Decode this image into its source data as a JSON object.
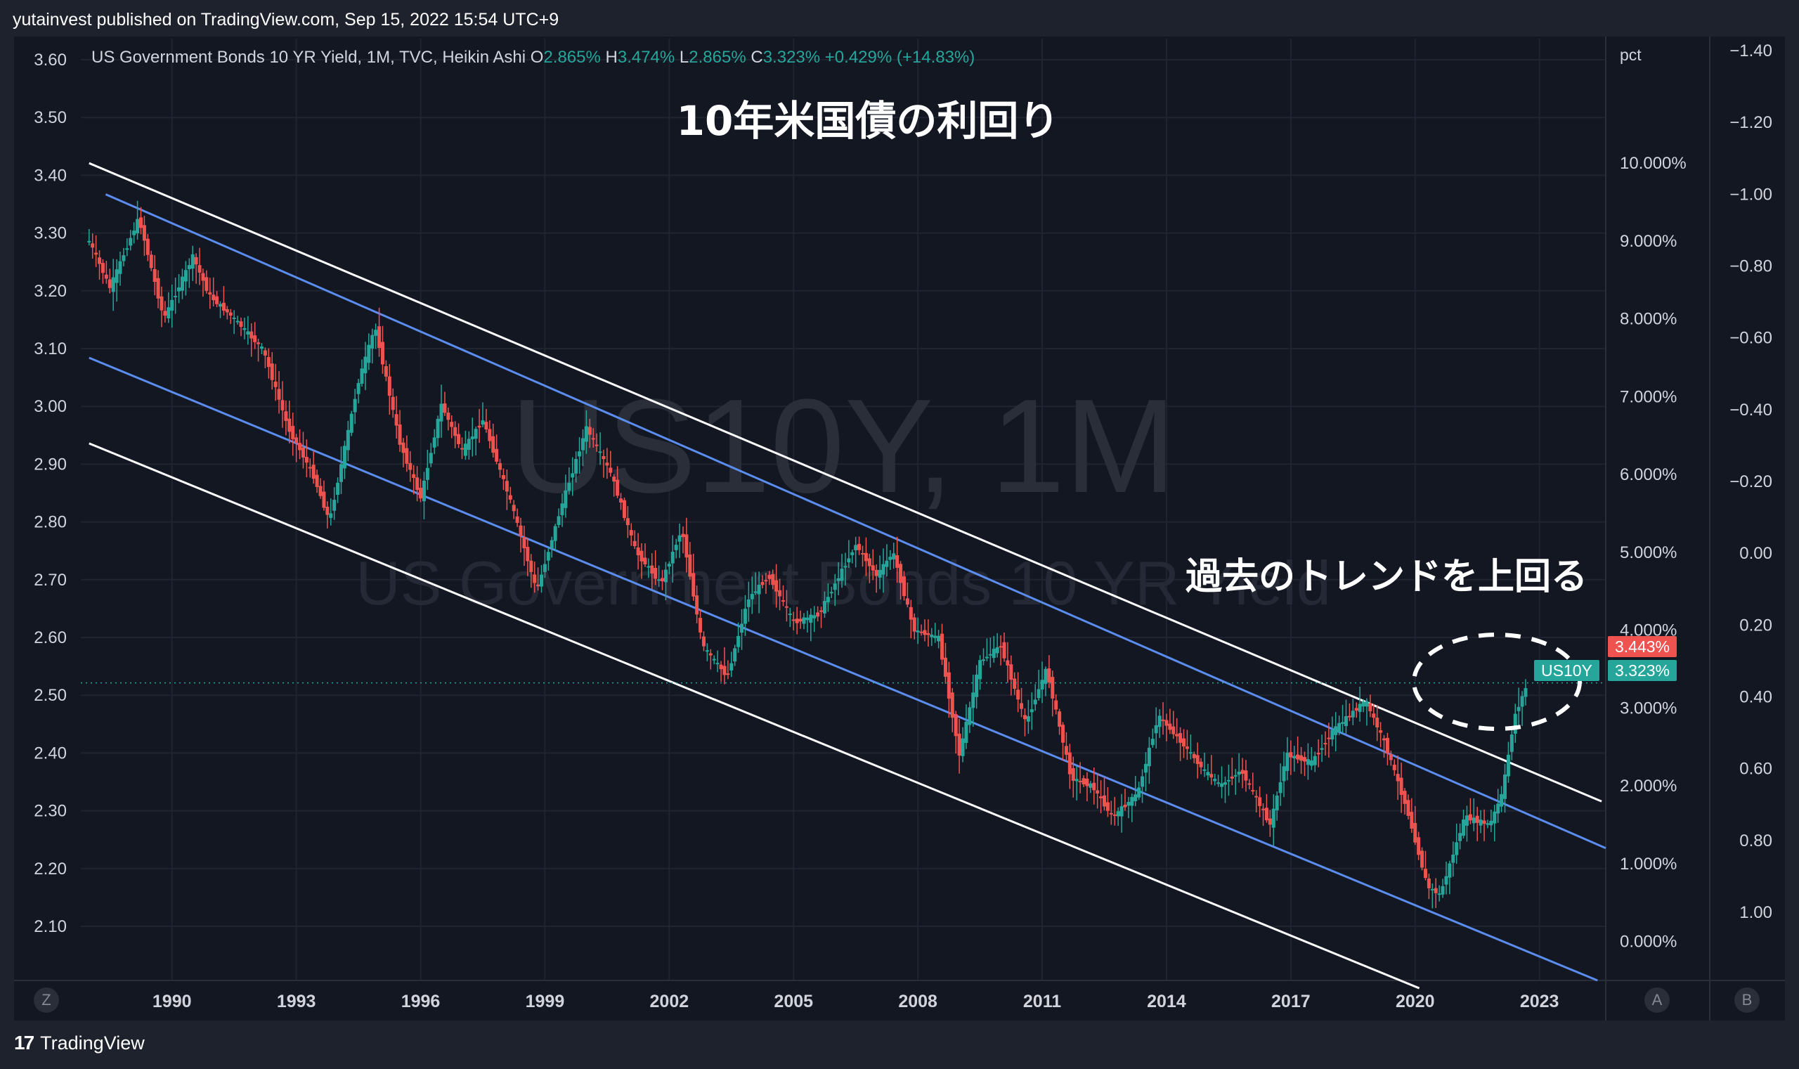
{
  "header": {
    "published": "yutainvest published on TradingView.com, Sep 15, 2022 15:54 UTC+9"
  },
  "legend": {
    "title": "US Government Bonds 10 YR Yield, 1M, TVC, Heikin Ashi",
    "o_label": "O",
    "o": "2.865%",
    "h_label": "H",
    "h": "3.474%",
    "l_label": "L",
    "l": "2.865%",
    "c_label": "C",
    "c": "3.323%",
    "change": "+0.429% (+14.83%)"
  },
  "watermark": {
    "symbol": "US10Y, 1M",
    "name": "US Government Bonds 10 YR Yield"
  },
  "annotations": {
    "main_title": "10年米国債の利回り",
    "trend_note": "過去のトレンドを上回る"
  },
  "scales": {
    "pct_label": "pct",
    "left_ticks": [
      "3.60",
      "3.50",
      "3.40",
      "3.30",
      "3.20",
      "3.10",
      "3.00",
      "2.90",
      "2.80",
      "2.70",
      "2.60",
      "2.50",
      "2.40",
      "2.30",
      "2.20",
      "2.10"
    ],
    "mid_ticks": [
      "10.000%",
      "9.000%",
      "8.000%",
      "7.000%",
      "6.000%",
      "5.000%",
      "4.000%",
      "3.000%",
      "2.000%",
      "1.000%",
      "0.000%"
    ],
    "right_ticks": [
      "−1.40",
      "−1.20",
      "−1.00",
      "−0.80",
      "−0.60",
      "−0.40",
      "−0.20",
      "0.00",
      "0.20",
      "0.40",
      "0.60",
      "0.80",
      "1.00"
    ],
    "x_ticks": [
      "1990",
      "1993",
      "1996",
      "1999",
      "2002",
      "2005",
      "2008",
      "2011",
      "2014",
      "2017",
      "2020",
      "2023"
    ]
  },
  "price_tags": {
    "high": "3.443%",
    "symbol": "US10Y",
    "last": "3.323%"
  },
  "buttons": {
    "z": "Z",
    "a": "A",
    "b": "B"
  },
  "footer": {
    "brand": "TradingView",
    "logo": "17"
  },
  "colors": {
    "up": "#26a69a",
    "down": "#ef5350",
    "channel_outer": "#ffffff",
    "channel_inner": "#5b8def",
    "background": "#131722"
  },
  "chart_data": {
    "type": "candlestick",
    "chart_style": "Heikin Ashi",
    "interval": "1M",
    "y_unit": "%",
    "ylim": [
      -0.5,
      11.6
    ],
    "x_range": [
      1987.8,
      2024.6
    ],
    "series": [
      {
        "name": "US10Y",
        "points": [
          [
            1988.0,
            9.0
          ],
          [
            1988.5,
            8.4
          ],
          [
            1989.2,
            9.3
          ],
          [
            1989.8,
            8.0
          ],
          [
            1990.5,
            8.8
          ],
          [
            1990.9,
            8.3
          ],
          [
            1991.5,
            8.0
          ],
          [
            1992.2,
            7.6
          ],
          [
            1992.8,
            6.6
          ],
          [
            1993.4,
            6.0
          ],
          [
            1993.8,
            5.4
          ],
          [
            1994.5,
            7.2
          ],
          [
            1994.9,
            7.9
          ],
          [
            1995.5,
            6.4
          ],
          [
            1996.0,
            5.7
          ],
          [
            1996.5,
            6.9
          ],
          [
            1997.0,
            6.3
          ],
          [
            1997.5,
            6.7
          ],
          [
            1998.2,
            5.6
          ],
          [
            1998.8,
            4.5
          ],
          [
            1999.4,
            5.6
          ],
          [
            2000.0,
            6.6
          ],
          [
            2000.6,
            6.0
          ],
          [
            2001.2,
            5.0
          ],
          [
            2001.8,
            4.6
          ],
          [
            2002.3,
            5.3
          ],
          [
            2002.8,
            3.8
          ],
          [
            2003.4,
            3.4
          ],
          [
            2003.9,
            4.4
          ],
          [
            2004.4,
            4.7
          ],
          [
            2005.0,
            4.1
          ],
          [
            2005.6,
            4.2
          ],
          [
            2006.5,
            5.1
          ],
          [
            2007.0,
            4.7
          ],
          [
            2007.4,
            5.0
          ],
          [
            2007.9,
            4.0
          ],
          [
            2008.5,
            3.9
          ],
          [
            2009.0,
            2.4
          ],
          [
            2009.5,
            3.6
          ],
          [
            2010.0,
            3.8
          ],
          [
            2010.6,
            2.8
          ],
          [
            2011.1,
            3.5
          ],
          [
            2011.7,
            2.1
          ],
          [
            2012.2,
            2.0
          ],
          [
            2012.7,
            1.6
          ],
          [
            2013.3,
            1.9
          ],
          [
            2013.8,
            2.9
          ],
          [
            2014.3,
            2.6
          ],
          [
            2014.9,
            2.2
          ],
          [
            2015.3,
            2.0
          ],
          [
            2015.8,
            2.2
          ],
          [
            2016.5,
            1.5
          ],
          [
            2016.9,
            2.4
          ],
          [
            2017.5,
            2.3
          ],
          [
            2018.0,
            2.7
          ],
          [
            2018.8,
            3.1
          ],
          [
            2019.3,
            2.5
          ],
          [
            2019.8,
            1.7
          ],
          [
            2020.3,
            0.7
          ],
          [
            2020.6,
            0.6
          ],
          [
            2021.2,
            1.6
          ],
          [
            2021.8,
            1.5
          ],
          [
            2022.1,
            1.9
          ],
          [
            2022.4,
            2.9
          ],
          [
            2022.7,
            3.3
          ]
        ]
      }
    ],
    "channels": [
      {
        "name": "",
        "style": "white",
        "from": [
          1988.0,
          10.0
        ],
        "to": [
          2024.5,
          1.8
        ]
      },
      {
        "name": "",
        "style": "blue",
        "from": [
          1988.4,
          9.6
        ],
        "to": [
          2024.6,
          1.2
        ]
      },
      {
        "name": "",
        "style": "blue",
        "from": [
          1988.0,
          7.5
        ],
        "to": [
          2024.4,
          -0.5
        ]
      },
      {
        "name": "",
        "style": "white",
        "from": [
          1988.0,
          6.4
        ],
        "to": [
          2020.1,
          -0.6
        ]
      }
    ],
    "current_value": 3.323,
    "high_tag_value": 3.443
  }
}
